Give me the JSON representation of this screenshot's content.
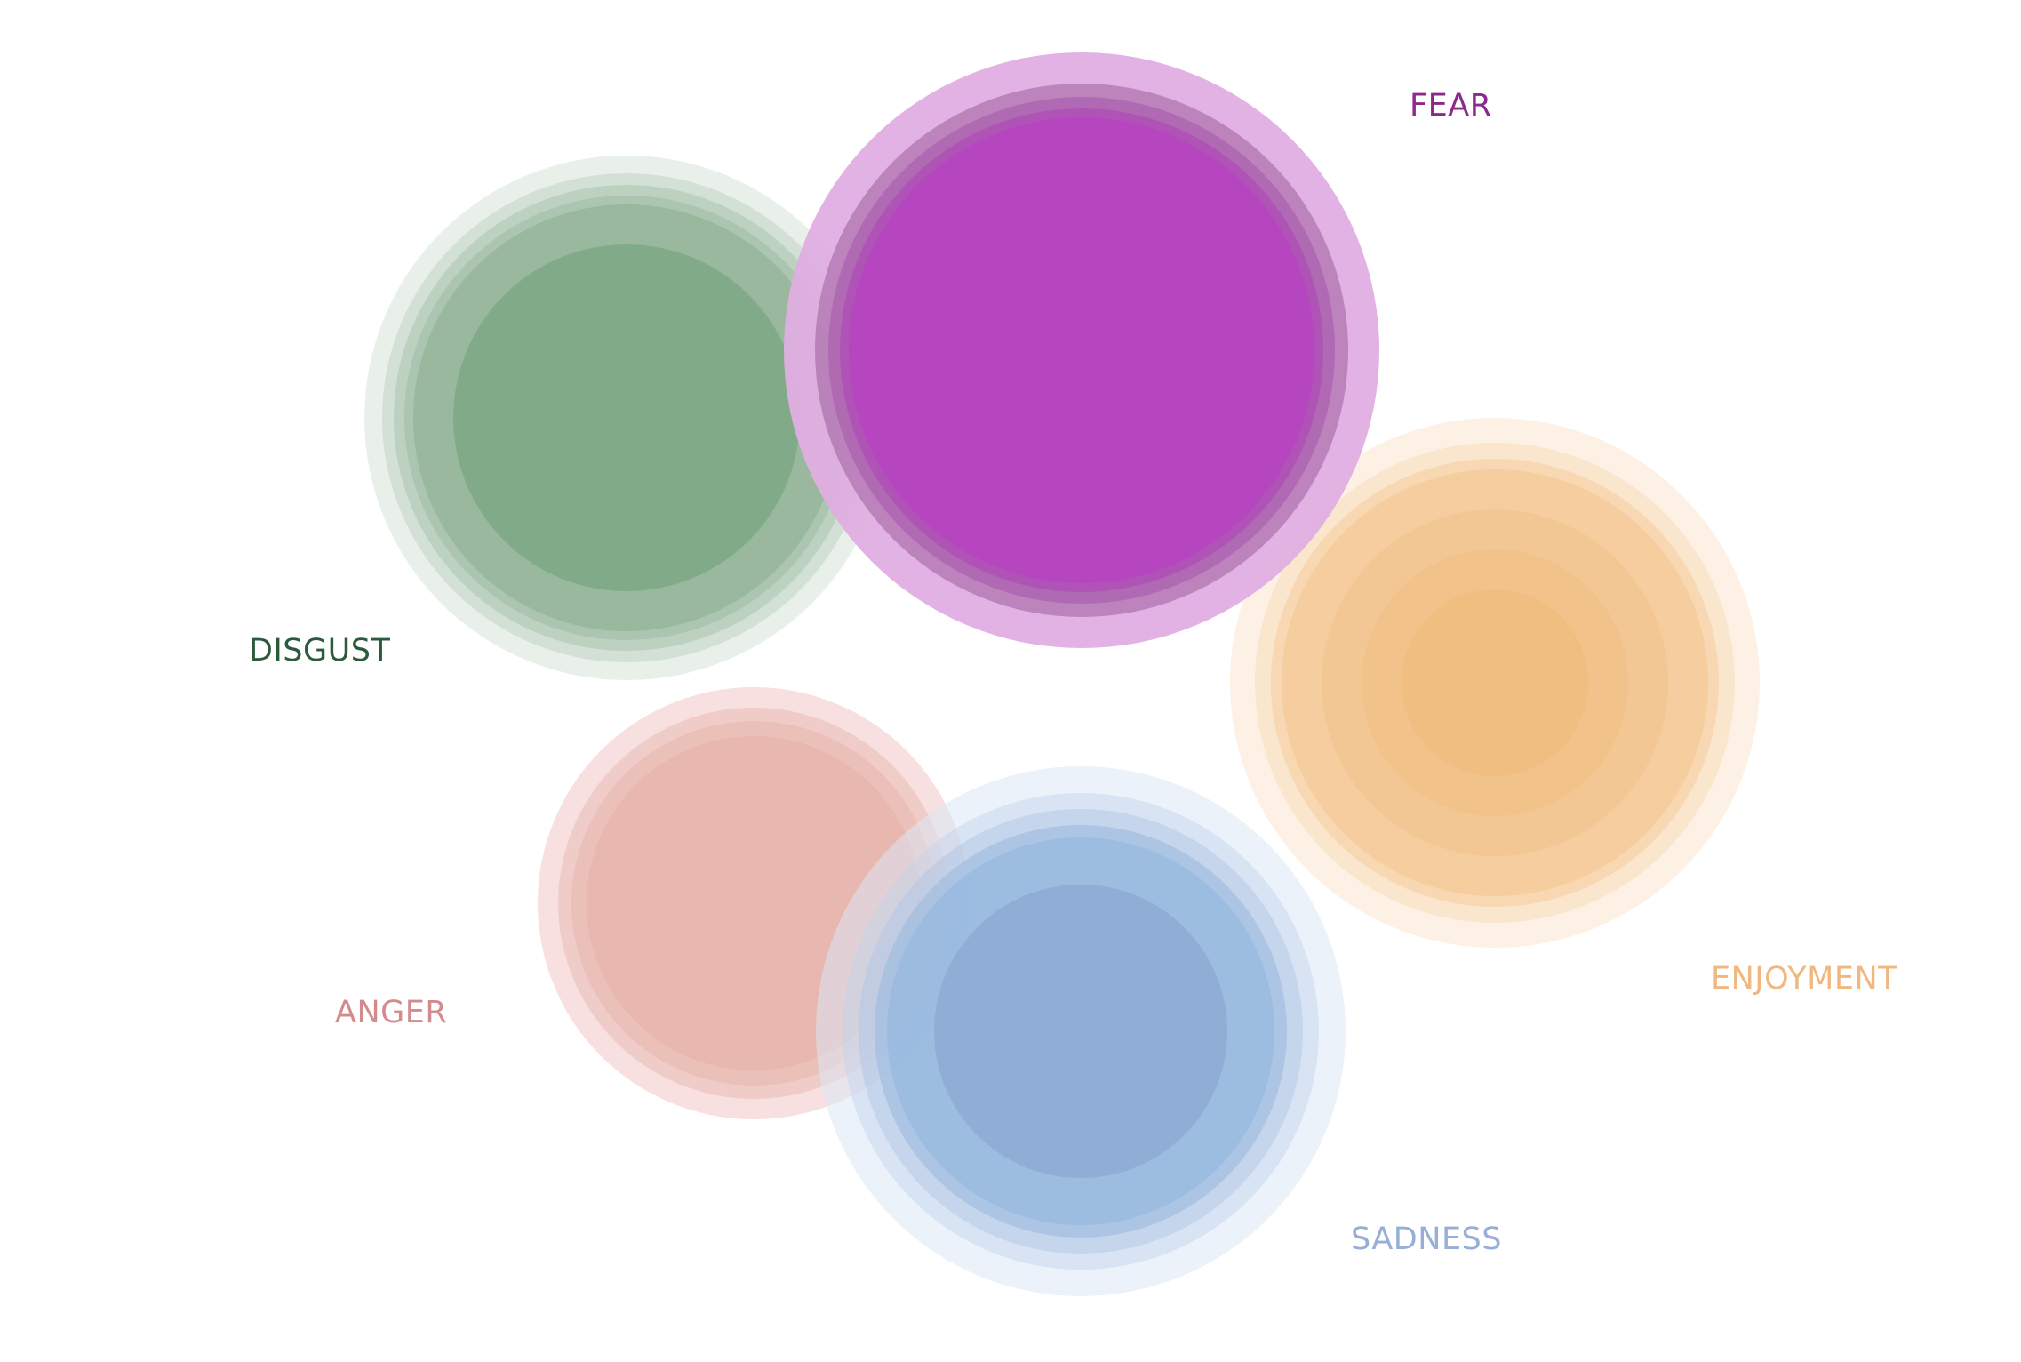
{
  "emotions": [
    {
      "key": "fear",
      "label": "FEAR",
      "color": "#b646c0",
      "label_color": "#8b2a8a"
    },
    {
      "key": "disgust",
      "label": "DISGUST",
      "color": "#7eaa85",
      "label_color": "#2b5b3b"
    },
    {
      "key": "enjoyment",
      "label": "ENJOYMENT",
      "color": "#f0bd7e",
      "label_color": "#f0b880"
    },
    {
      "key": "anger",
      "label": "ANGER",
      "color": "#e6b5ae",
      "label_color": "#d48b8d"
    },
    {
      "key": "sadness",
      "label": "SADNESS",
      "color": "#8fabd3",
      "label_color": "#96aed8"
    }
  ]
}
